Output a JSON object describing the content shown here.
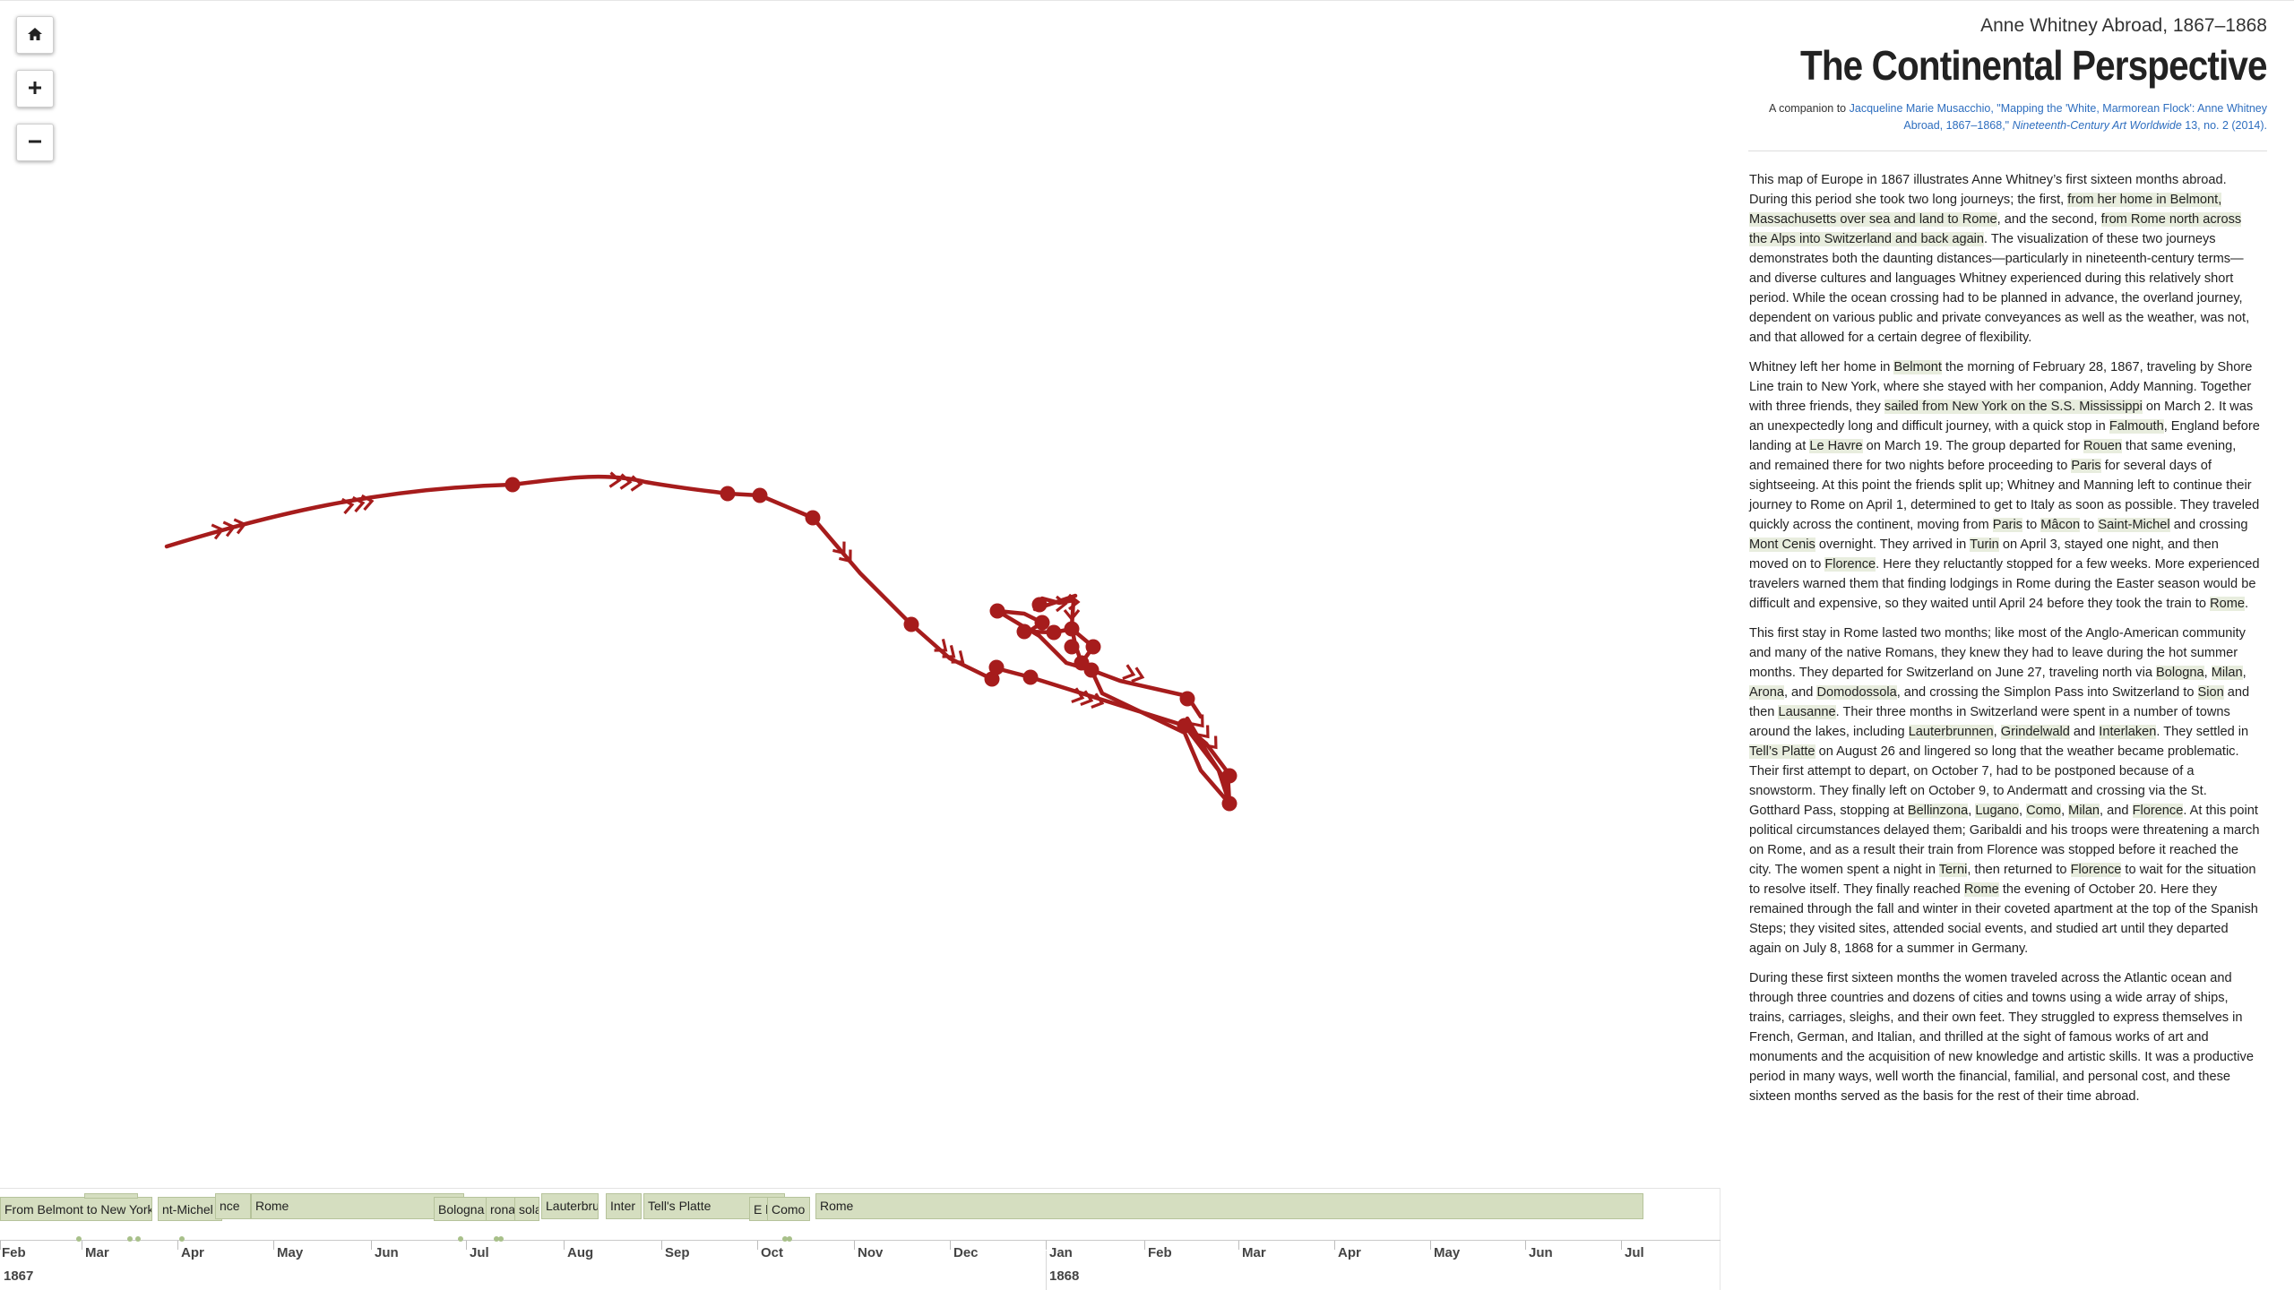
{
  "controls": {
    "home": "⌂",
    "zoom_in": "+",
    "zoom_out": "−"
  },
  "header": {
    "subtitle": "Anne Whitney Abroad, 1867–1868",
    "title": "The Continental Perspective",
    "companion_prefix": "A companion to ",
    "companion_link": "Jacqueline Marie Musacchio, \"Mapping the 'White, Marmorean Flock': Anne Whitney Abroad, 1867–1868,\"",
    "journal": "Nineteenth-Century Art Worldwide",
    "journal_rest": " 13, no. 2 (2014)."
  },
  "route_color": "#a61c1c",
  "highlight_color": "#e8edde",
  "timeline": {
    "bars": [
      {
        "label": "From Belmont to New York"
      },
      {
        "label": ""
      },
      {
        "label": "nt-Michel"
      },
      {
        "label": "nce"
      },
      {
        "label": "Rome"
      },
      {
        "label": "Bologna"
      },
      {
        "label": "rona"
      },
      {
        "label": "sola"
      },
      {
        "label": "Lauterbru"
      },
      {
        "label": "Inter"
      },
      {
        "label": "Tell's Platte"
      },
      {
        "label": "E l"
      },
      {
        "label": "Como"
      },
      {
        "label": "Rome"
      }
    ],
    "months": [
      "Feb",
      "Mar",
      "Apr",
      "May",
      "Jun",
      "Jul",
      "Aug",
      "Sep",
      "Oct",
      "Nov",
      "Dec",
      "Jan",
      "Feb",
      "Mar",
      "Apr",
      "May",
      "Jun",
      "Jul"
    ],
    "years": [
      "1867",
      "1868"
    ]
  }
}
